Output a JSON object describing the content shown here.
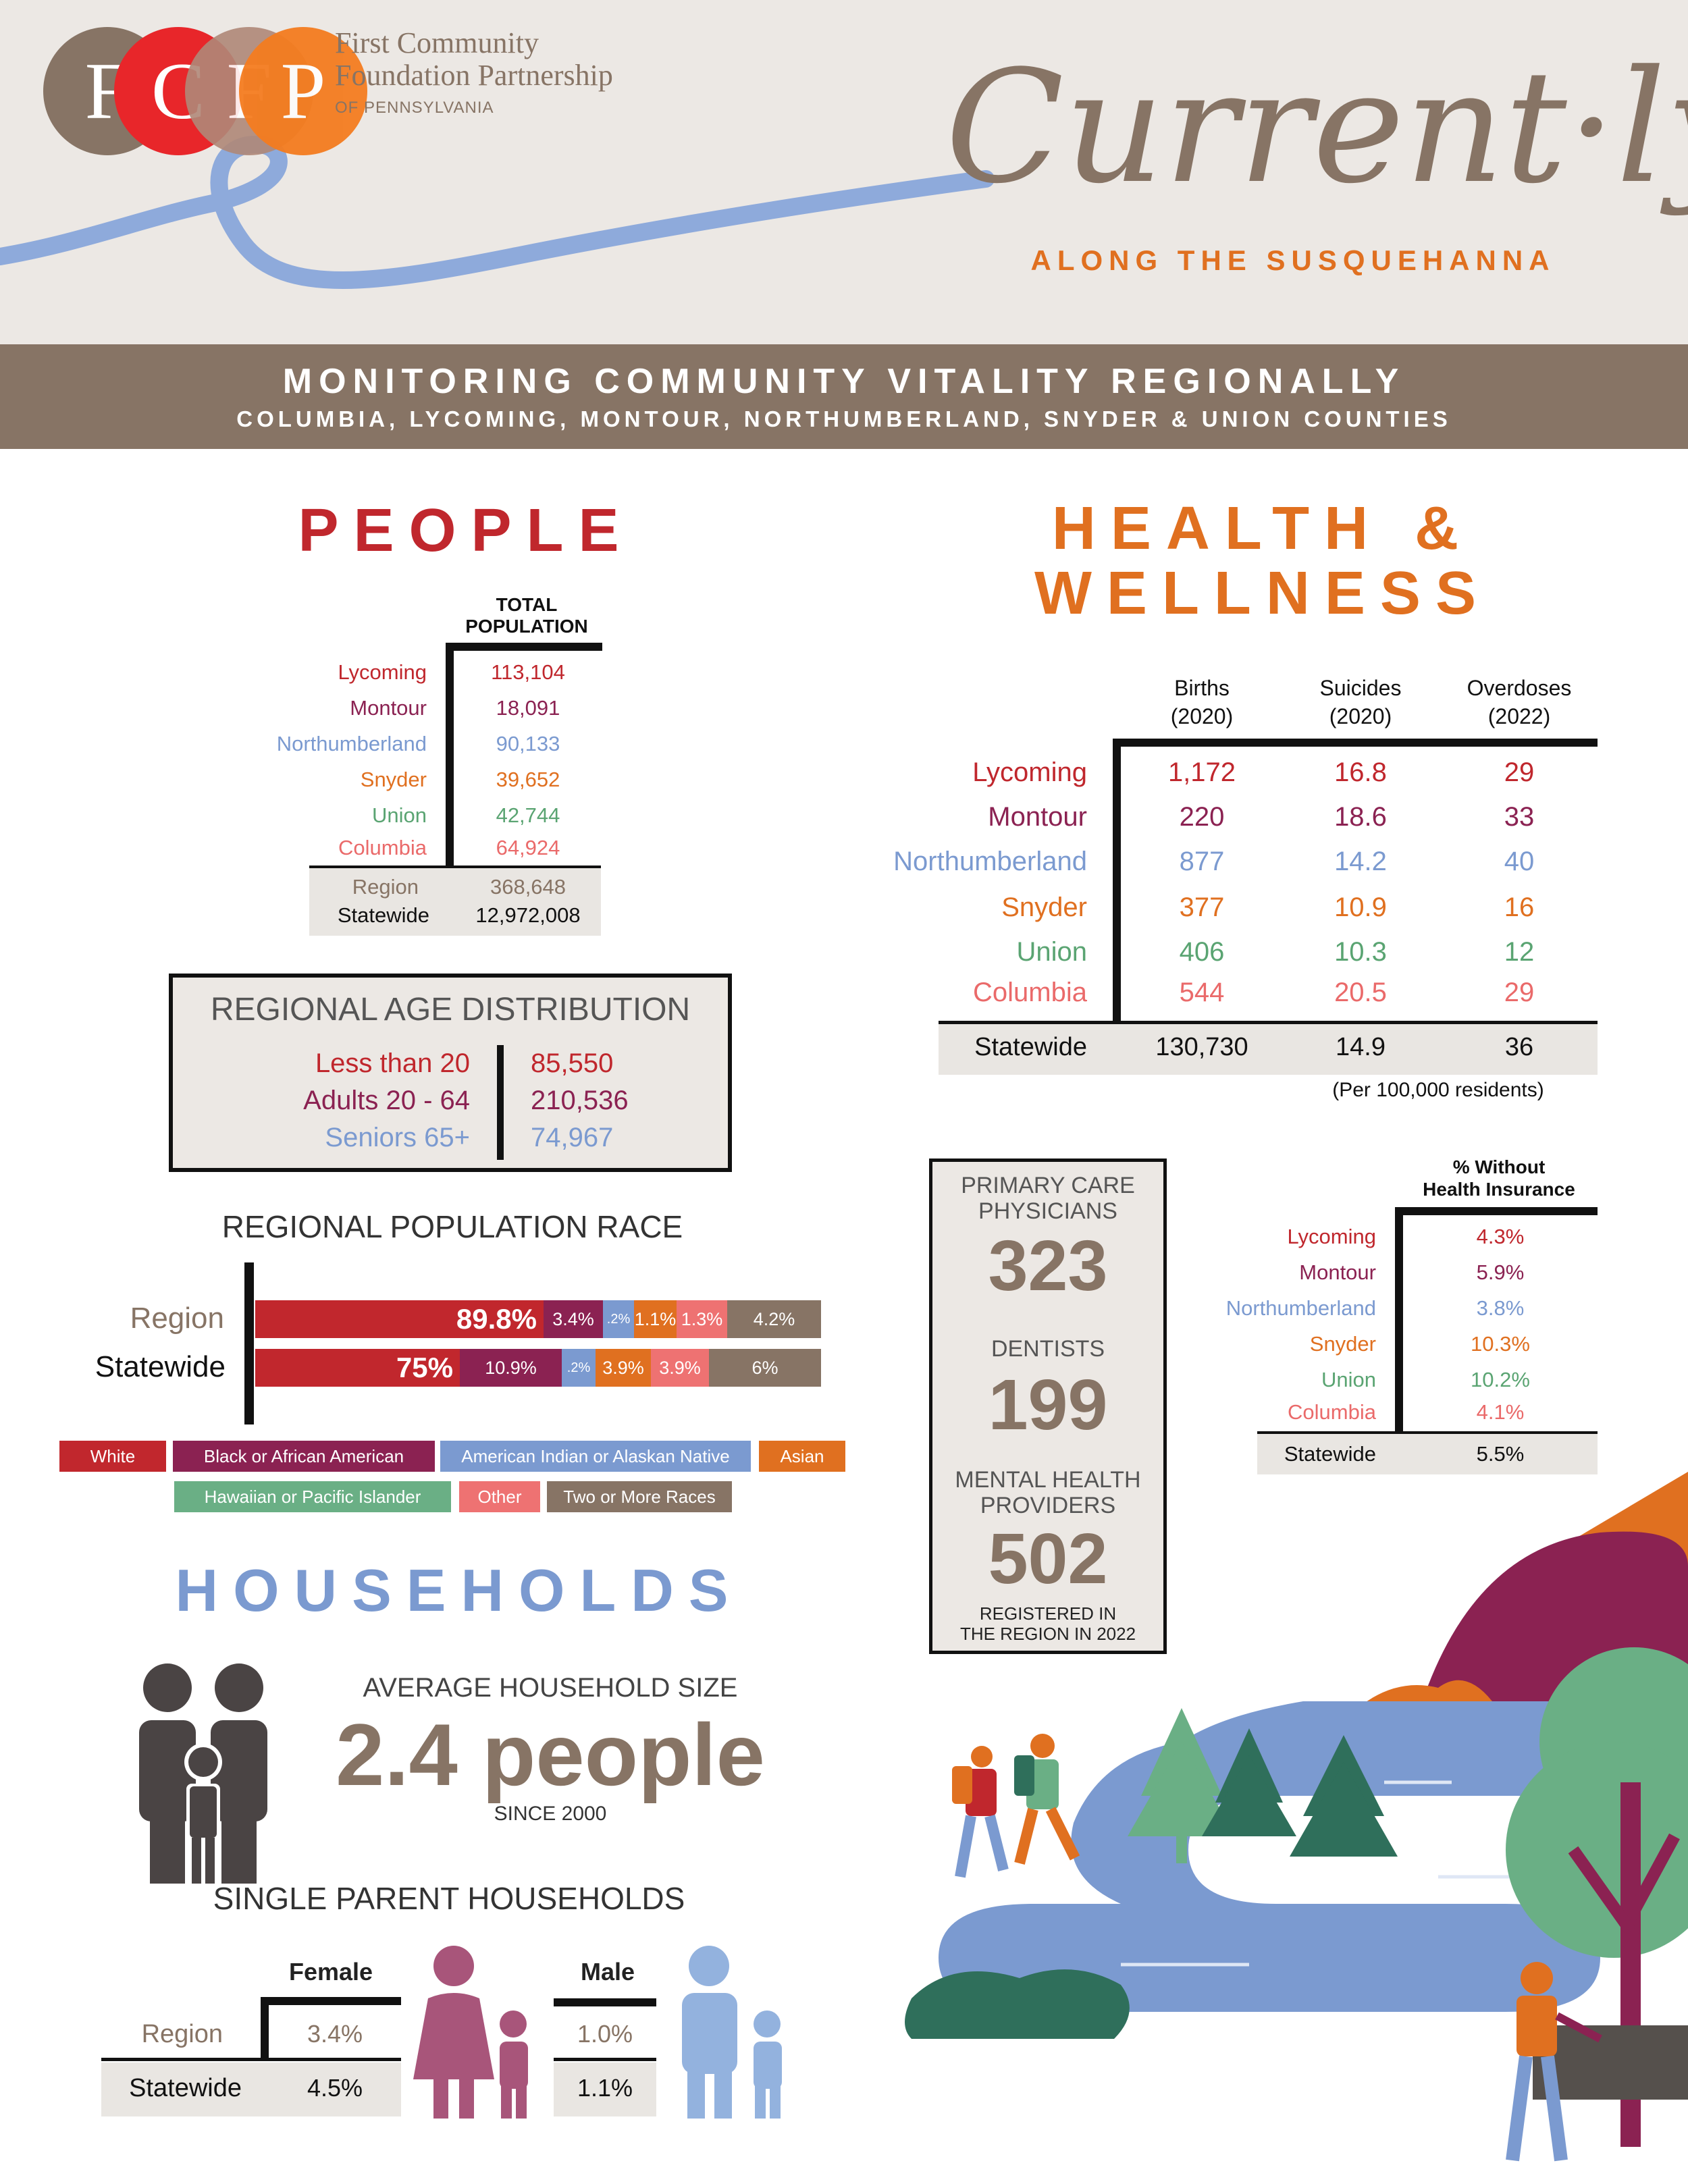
{
  "colors": {
    "lycoming": "#c0272d",
    "montour": "#8b2252",
    "northumberland": "#7b9ad0",
    "snyder": "#e07020",
    "union": "#5aa472",
    "columbia": "#ea6a6a",
    "brown": "#877465",
    "white_race": "#c1272d",
    "black_race": "#8b2252",
    "indian_race": "#7b9ad0",
    "asian_race": "#e07020",
    "hawaiian_race": "#6aaf85",
    "other_race": "#ee7272",
    "two_race": "#877465"
  },
  "header": {
    "logo_letters": [
      "F",
      "C",
      "F",
      "P"
    ],
    "logo_line1": "First Community",
    "logo_line2": "Foundation Partnership",
    "logo_line3": "OF PENNSYLVANIA",
    "title_script": "Current·ly",
    "subtitle": "ALONG THE SUSQUEHANNA"
  },
  "band": {
    "title": "MONITORING COMMUNITY VITALITY REGIONALLY",
    "subtitle": "COLUMBIA, LYCOMING, MONTOUR, NORTHUMBERLAND, SNYDER & UNION COUNTIES"
  },
  "people": {
    "title": "PEOPLE",
    "column_header_line1": "TOTAL",
    "column_header_line2": "POPULATION",
    "rows": [
      {
        "county": "Lycoming",
        "value": "113,104"
      },
      {
        "county": "Montour",
        "value": "18,091"
      },
      {
        "county": "Northumberland",
        "value": "90,133"
      },
      {
        "county": "Snyder",
        "value": "39,652"
      },
      {
        "county": "Union",
        "value": "42,744"
      },
      {
        "county": "Columbia",
        "value": "64,924"
      }
    ],
    "region_label": "Region",
    "region_value": "368,648",
    "state_label": "Statewide",
    "state_value": "12,972,008"
  },
  "age": {
    "title": "REGIONAL AGE DISTRIBUTION",
    "rows": [
      {
        "label": "Less than 20",
        "value": "85,550"
      },
      {
        "label": "Adults 20 - 64",
        "value": "210,536"
      },
      {
        "label": "Seniors 65+",
        "value": "74,967"
      }
    ]
  },
  "race": {
    "title": "REGIONAL POPULATION RACE",
    "region_label": "Region",
    "state_label": "Statewide",
    "region_segments": [
      {
        "label": "89.8%",
        "pct": 50.9
      },
      {
        "label": "3.4%",
        "pct": 10.5
      },
      {
        "label": ".2%",
        "pct": 5.5
      },
      {
        "label": "1.1%",
        "pct": 7.5
      },
      {
        "label": "1.3%",
        "pct": 9.0
      },
      {
        "label": "4.2%",
        "pct": 16.6
      }
    ],
    "state_segments": [
      {
        "label": "75%",
        "pct": 36.1
      },
      {
        "label": "10.9%",
        "pct": 18.0
      },
      {
        "label": ".2%",
        "pct": 6.0
      },
      {
        "label": "3.9%",
        "pct": 9.8
      },
      {
        "label": "3.9%",
        "pct": 10.3
      },
      {
        "label": "6%",
        "pct": 19.8
      }
    ],
    "legend": [
      "White",
      "Black or African American",
      "American Indian or Alaskan Native",
      "Asian",
      "Hawaiian or Pacific Islander",
      "Other",
      "Two or More Races"
    ]
  },
  "households": {
    "title": "HOUSEHOLDS",
    "avg_label": "AVERAGE HOUSEHOLD SIZE",
    "avg_value": "2.4 people",
    "avg_since": "SINCE 2000",
    "single_title": "SINGLE PARENT HOUSEHOLDS",
    "female_label": "Female",
    "male_label": "Male",
    "region_label": "Region",
    "state_label": "Statewide",
    "female_region": "3.4%",
    "female_state": "4.5%",
    "male_region": "1.0%",
    "male_state": "1.1%"
  },
  "health": {
    "title_line1": "HEALTH &",
    "title_line2": "WELLNESS",
    "col_births_1": "Births",
    "col_births_2": "(2020)",
    "col_suicides_1": "Suicides",
    "col_suicides_2": "(2020)",
    "col_overdoses_1": "Overdoses",
    "col_overdoses_2": "(2022)",
    "rows": [
      {
        "county": "Lycoming",
        "births": "1,172",
        "suicides": "16.8",
        "overdoses": "29"
      },
      {
        "county": "Montour",
        "births": "220",
        "suicides": "18.6",
        "overdoses": "33"
      },
      {
        "county": "Northumberland",
        "births": "877",
        "suicides": "14.2",
        "overdoses": "40"
      },
      {
        "county": "Snyder",
        "births": "377",
        "suicides": "10.9",
        "overdoses": "16"
      },
      {
        "county": "Union",
        "births": "406",
        "suicides": "10.3",
        "overdoses": "12"
      },
      {
        "county": "Columbia",
        "births": "544",
        "suicides": "20.5",
        "overdoses": "29"
      }
    ],
    "state_label": "Statewide",
    "state_births": "130,730",
    "state_suicides": "14.9",
    "state_overdoses": "36",
    "per_note": "(Per 100,000 residents)"
  },
  "providers": {
    "pcp_label_1": "PRIMARY CARE",
    "pcp_label_2": "PHYSICIANS",
    "pcp_value": "323",
    "dent_label": "DENTISTS",
    "dent_value": "199",
    "mh_label_1": "MENTAL HEALTH",
    "mh_label_2": "PROVIDERS",
    "mh_value": "502",
    "note_1": "REGISTERED IN",
    "note_2": "THE REGION IN 2022"
  },
  "insurance": {
    "header_1": "% Without",
    "header_2": "Health Insurance",
    "rows": [
      {
        "county": "Lycoming",
        "value": "4.3%"
      },
      {
        "county": "Montour",
        "value": "5.9%"
      },
      {
        "county": "Northumberland",
        "value": "3.8%"
      },
      {
        "county": "Snyder",
        "value": "10.3%"
      },
      {
        "county": "Union",
        "value": "10.2%"
      },
      {
        "county": "Columbia",
        "value": "4.1%"
      }
    ],
    "state_label": "Statewide",
    "state_value": "5.5%"
  }
}
